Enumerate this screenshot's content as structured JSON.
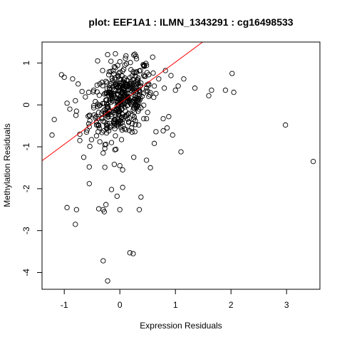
{
  "chart_data": {
    "type": "scatter",
    "title": "plot: EEF1A1 : ILMN_1343291 : cg16498533",
    "xlabel": "Expression Residuals",
    "ylabel": "Methylation Residuals",
    "xlim": [
      -1.4,
      3.6
    ],
    "ylim": [
      -4.4,
      1.5
    ],
    "xticks": [
      -1,
      0,
      1,
      2,
      3
    ],
    "yticks": [
      -4,
      -3,
      -2,
      -1,
      0,
      1
    ],
    "fit_line": {
      "intercept": 0.04,
      "slope": 0.98,
      "color": "#ff0000"
    },
    "point_color": "#000000",
    "cluster": {
      "count": 440,
      "seed": 12345
    },
    "points": [
      [
        -0.85,
        0.62
      ],
      [
        -1.05,
        0.72
      ],
      [
        -1.0,
        0.66
      ],
      [
        -1.18,
        -0.35
      ],
      [
        -1.22,
        -0.72
      ],
      [
        -0.9,
        -0.1
      ],
      [
        -0.78,
        -0.15
      ],
      [
        -0.95,
        -2.45
      ],
      [
        -0.78,
        -2.5
      ],
      [
        -0.8,
        -2.85
      ],
      [
        -0.55,
        -1.88
      ],
      [
        -0.38,
        -2.48
      ],
      [
        -0.3,
        -2.5
      ],
      [
        -0.25,
        -2.38
      ],
      [
        -0.28,
        -2.55
      ],
      [
        -0.15,
        -2.02
      ],
      [
        -0.05,
        -2.18
      ],
      [
        0.05,
        -1.97
      ],
      [
        0.0,
        -2.5
      ],
      [
        -0.3,
        -3.72
      ],
      [
        -0.22,
        -4.2
      ],
      [
        0.18,
        -3.53
      ],
      [
        0.24,
        -3.55
      ],
      [
        0.35,
        -2.5
      ],
      [
        0.38,
        -2.2
      ],
      [
        0.05,
        -1.55
      ],
      [
        0.0,
        -1.45
      ],
      [
        -0.1,
        -1.42
      ],
      [
        -0.3,
        -1.15
      ],
      [
        -0.65,
        -1.25
      ],
      [
        -0.55,
        -1.48
      ],
      [
        -0.72,
        -0.85
      ],
      [
        -0.6,
        -0.65
      ],
      [
        0.55,
        -1.5
      ],
      [
        0.48,
        -1.32
      ],
      [
        0.62,
        -0.92
      ],
      [
        0.78,
        -0.62
      ],
      [
        0.85,
        -0.55
      ],
      [
        1.0,
        0.35
      ],
      [
        1.05,
        0.45
      ],
      [
        1.15,
        0.62
      ],
      [
        1.35,
        0.4
      ],
      [
        1.6,
        0.22
      ],
      [
        1.65,
        0.35
      ],
      [
        1.9,
        0.35
      ],
      [
        2.05,
        0.3
      ],
      [
        2.02,
        0.75
      ],
      [
        2.98,
        -0.48
      ],
      [
        3.48,
        -1.35
      ],
      [
        1.1,
        -1.12
      ],
      [
        0.95,
        -0.72
      ],
      [
        0.88,
        -0.28
      ],
      [
        0.92,
        0.7
      ],
      [
        0.82,
        0.82
      ],
      [
        0.7,
        0.62
      ],
      [
        -0.8,
        0.1
      ],
      [
        -0.75,
        0.5
      ],
      [
        -0.68,
        0.32
      ],
      [
        0.3,
        1.1
      ],
      [
        0.12,
        0.98
      ],
      [
        -0.22,
        1.2
      ],
      [
        -0.08,
        1.22
      ],
      [
        -0.4,
        1.05
      ],
      [
        0.25,
        -1.25
      ],
      [
        0.62,
        0.45
      ]
    ]
  }
}
